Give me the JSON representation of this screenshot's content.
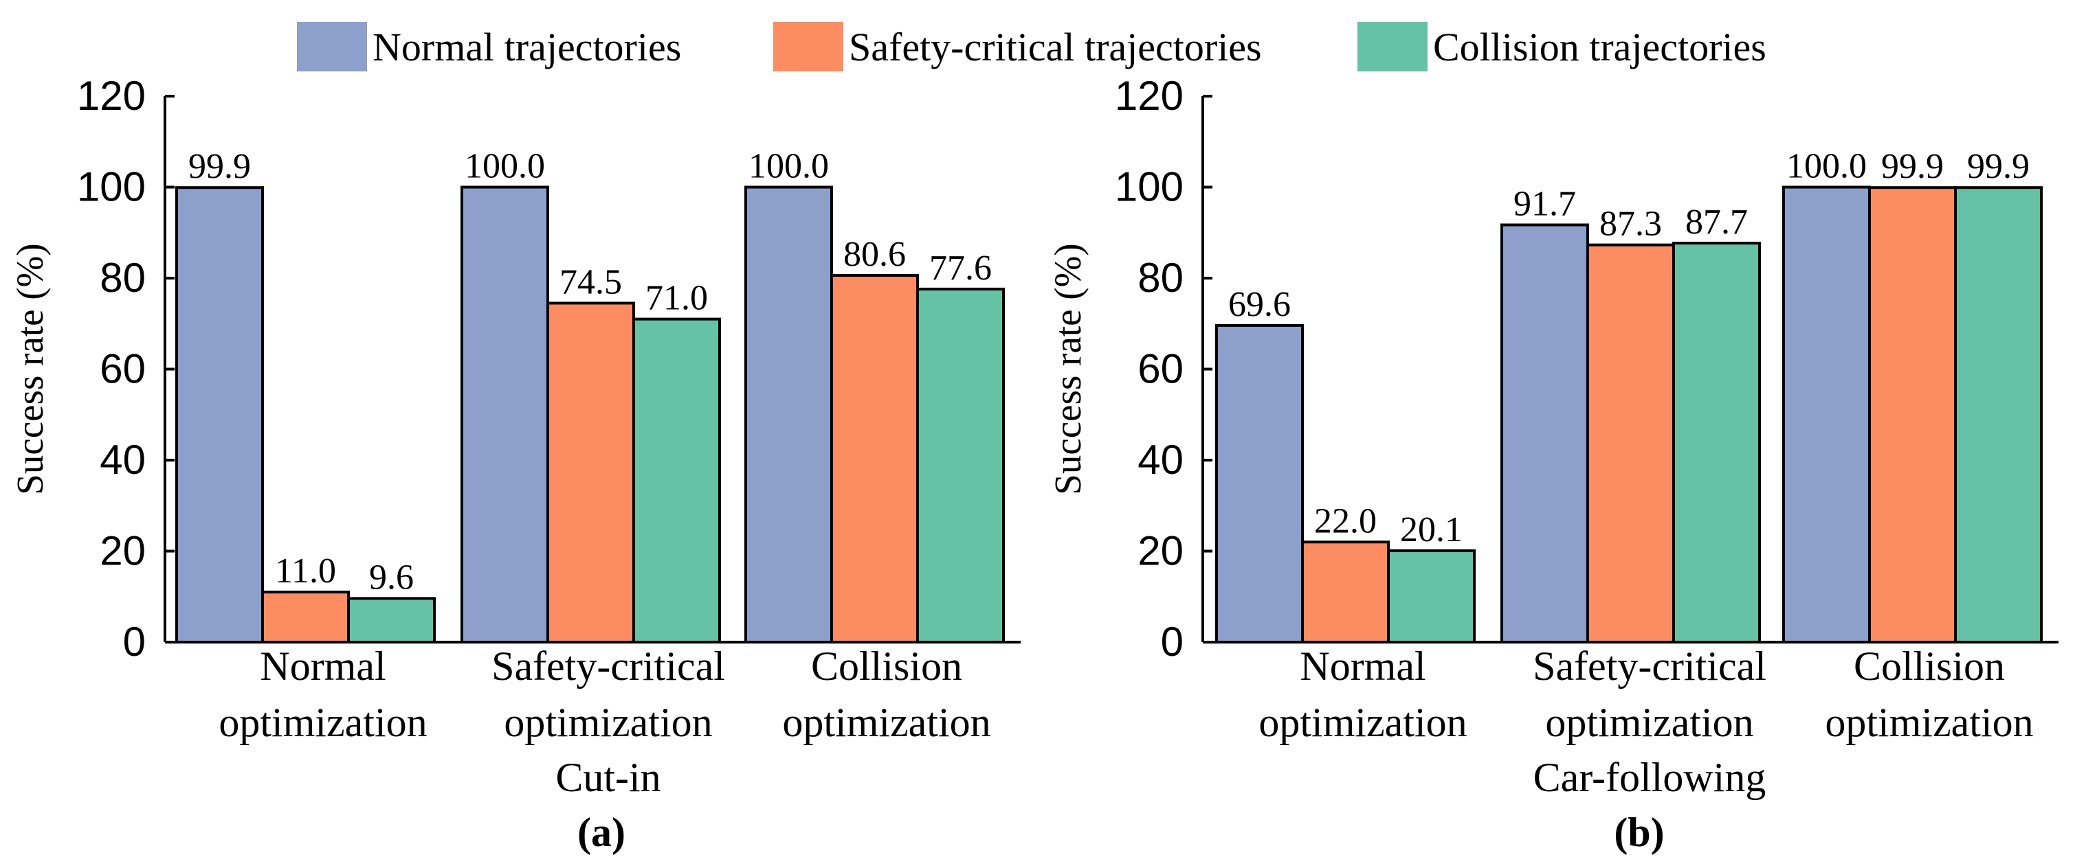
{
  "legend": {
    "placement": "top-center",
    "entries": [
      {
        "label": "Normal trajectories",
        "color": "#8DA0CB"
      },
      {
        "label": "Safety-critical trajectories",
        "color": "#FC8D62"
      },
      {
        "label": "Collision trajectories",
        "color": "#66C2A5"
      }
    ]
  },
  "chart_data": [
    {
      "type": "bar",
      "panel_label": "(a)",
      "scenario": "Cut-in",
      "ylabel": "Success rate (%)",
      "ylim": [
        0,
        120
      ],
      "yticks": [
        0,
        20,
        40,
        60,
        80,
        100,
        120
      ],
      "grid": false,
      "categories": [
        [
          "Normal",
          "optimization"
        ],
        [
          "Safety-critical",
          "optimization"
        ],
        [
          "Collision",
          "optimization"
        ]
      ],
      "series": [
        {
          "name": "Normal trajectories",
          "color": "#8DA0CB",
          "values": [
            99.9,
            100.0,
            100.0
          ],
          "labels": [
            "99.9",
            "100.0",
            "100.0"
          ]
        },
        {
          "name": "Safety-critical trajectories",
          "color": "#FC8D62",
          "values": [
            11.0,
            74.5,
            80.6
          ],
          "labels": [
            "11.0",
            "74.5",
            "80.6"
          ]
        },
        {
          "name": "Collision trajectories",
          "color": "#66C2A5",
          "values": [
            9.6,
            71.0,
            77.6
          ],
          "labels": [
            "9.6",
            "71.0",
            "77.6"
          ]
        }
      ]
    },
    {
      "type": "bar",
      "panel_label": "(b)",
      "scenario": "Car-following",
      "ylabel": "Success rate (%)",
      "ylim": [
        0,
        120
      ],
      "yticks": [
        0,
        20,
        40,
        60,
        80,
        100,
        120
      ],
      "grid": false,
      "categories": [
        [
          "Normal",
          "optimization"
        ],
        [
          "Safety-critical",
          "optimization"
        ],
        [
          "Collision",
          "optimization"
        ]
      ],
      "series": [
        {
          "name": "Normal trajectories",
          "color": "#8DA0CB",
          "values": [
            69.6,
            91.7,
            100.0
          ],
          "labels": [
            "69.6",
            "91.7",
            "100.0"
          ]
        },
        {
          "name": "Safety-critical trajectories",
          "color": "#FC8D62",
          "values": [
            22.0,
            87.3,
            99.9
          ],
          "labels": [
            "22.0",
            "87.3",
            "99.9"
          ]
        },
        {
          "name": "Collision trajectories",
          "color": "#66C2A5",
          "values": [
            20.1,
            87.7,
            99.9
          ],
          "labels": [
            "20.1",
            "87.7",
            "99.9"
          ]
        }
      ]
    }
  ]
}
